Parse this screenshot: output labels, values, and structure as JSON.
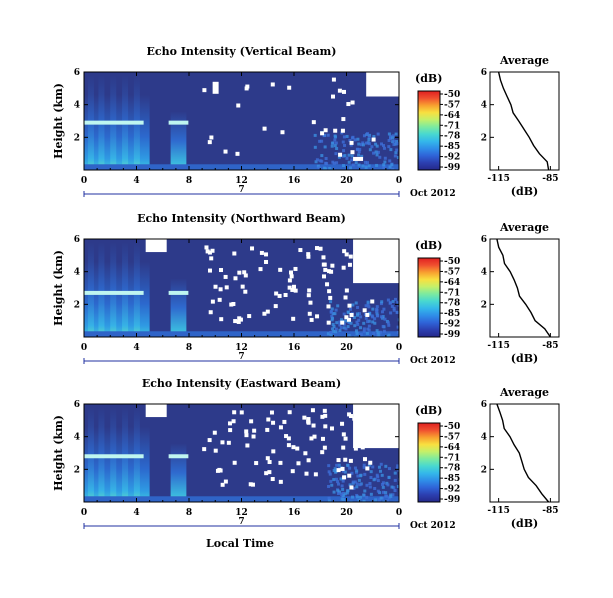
{
  "figure": {
    "x_label": "Local Time",
    "date_label": "Oct 2012",
    "day_label": "7",
    "y_label": "Height (km)",
    "unit_label": "(dB)",
    "avg_title": "Average",
    "avg_x_label": "(dB)"
  },
  "colors": {
    "background_echo": "#2d3a8a",
    "missing": "#ffffff",
    "colorbar": [
      "#24288a",
      "#2c3fb0",
      "#2f64d8",
      "#2f8ee8",
      "#34b8ea",
      "#48d8d0",
      "#7ceaa0",
      "#c4f06a",
      "#f8e040",
      "#f8a030",
      "#f05030",
      "#e02020"
    ]
  },
  "chart_data": [
    {
      "type": "heatmap",
      "title": "Echo Intensity (Vertical Beam)",
      "xlabel": "",
      "ylabel": "Height (km)",
      "x_ticks": [
        "0",
        "4",
        "8",
        "12",
        "16",
        "20",
        "0"
      ],
      "y_ticks": [
        "2",
        "4",
        "6"
      ],
      "xlim": [
        0,
        24
      ],
      "ylim": [
        0,
        6
      ],
      "colorbar": {
        "label": "(dB)",
        "ticks": [
          "-50",
          "-57",
          "-64",
          "-71",
          "-78",
          "-85",
          "-92",
          "-99"
        ],
        "range": [
          -99,
          -50
        ]
      },
      "features": {
        "bright_layer_km": 2.9,
        "active_convection_hours": [
          0,
          5
        ],
        "secondary_cell_hours": [
          6.6,
          7.8
        ],
        "low_echo_hours": [
          17.5,
          24
        ]
      },
      "average_profile": {
        "title": "Average",
        "xlabel": "(dB)",
        "x_ticks": [
          "-115",
          "-85"
        ],
        "y_ticks": [
          "2",
          "4",
          "6"
        ],
        "xlim": [
          -120,
          -80
        ],
        "ylim": [
          0,
          6
        ],
        "height_km": [
          0,
          0.5,
          1,
          1.5,
          2,
          2.5,
          3,
          3.5,
          4,
          4.5,
          5,
          5.5,
          6
        ],
        "values_db": [
          -86,
          -87,
          -92,
          -95,
          -98,
          -101,
          -104,
          -106,
          -108,
          -110,
          -112,
          -114,
          -115
        ]
      }
    },
    {
      "type": "heatmap",
      "title": "Echo Intensity (Northward Beam)",
      "xlabel": "",
      "ylabel": "Height (km)",
      "x_ticks": [
        "0",
        "4",
        "8",
        "12",
        "16",
        "20",
        "0"
      ],
      "y_ticks": [
        "2",
        "4",
        "6"
      ],
      "xlim": [
        0,
        24
      ],
      "ylim": [
        0,
        6
      ],
      "colorbar": {
        "label": "(dB)",
        "ticks": [
          "-50",
          "-57",
          "-64",
          "-71",
          "-78",
          "-85",
          "-92",
          "-99"
        ],
        "range": [
          -99,
          -50
        ]
      },
      "features": {
        "bright_layer_km": 2.7,
        "active_convection_hours": [
          0,
          5
        ],
        "secondary_cell_hours": [
          6.6,
          7.8
        ],
        "low_echo_hours": [
          18.5,
          24
        ]
      },
      "average_profile": {
        "title": "Average",
        "xlabel": "(dB)",
        "x_ticks": [
          "-115",
          "-85"
        ],
        "y_ticks": [
          "2",
          "4",
          "6"
        ],
        "xlim": [
          -120,
          -80
        ],
        "ylim": [
          0,
          6
        ],
        "height_km": [
          0,
          0.5,
          1,
          1.5,
          2,
          2.5,
          3,
          3.5,
          4,
          4.5,
          5,
          5.5,
          6
        ],
        "values_db": [
          -85,
          -88,
          -93,
          -97,
          -100,
          -103,
          -105,
          -107,
          -109,
          -111,
          -113,
          -115,
          -116
        ]
      }
    },
    {
      "type": "heatmap",
      "title": "Echo Intensity (Eastward Beam)",
      "xlabel": "Local Time",
      "ylabel": "Height (km)",
      "x_ticks": [
        "0",
        "4",
        "8",
        "12",
        "16",
        "20",
        "0"
      ],
      "y_ticks": [
        "2",
        "4",
        "6"
      ],
      "xlim": [
        0,
        24
      ],
      "ylim": [
        0,
        6
      ],
      "colorbar": {
        "label": "(dB)",
        "ticks": [
          "-50",
          "-57",
          "-64",
          "-71",
          "-78",
          "-85",
          "-92",
          "-99"
        ],
        "range": [
          -99,
          -50
        ]
      },
      "features": {
        "bright_layer_km": 2.8,
        "active_convection_hours": [
          0,
          5
        ],
        "secondary_cell_hours": [
          6.6,
          7.8
        ],
        "low_echo_hours": [
          18.5,
          24
        ]
      },
      "average_profile": {
        "title": "Average",
        "xlabel": "(dB)",
        "x_ticks": [
          "-115",
          "-85"
        ],
        "y_ticks": [
          "2",
          "4",
          "6"
        ],
        "xlim": [
          -120,
          -80
        ],
        "ylim": [
          0,
          6
        ],
        "height_km": [
          0,
          0.5,
          1,
          1.5,
          2,
          2.5,
          3,
          3.5,
          4,
          4.5,
          5,
          5.5,
          6
        ],
        "values_db": [
          -86,
          -89,
          -94,
          -97,
          -100,
          -102,
          -104,
          -107,
          -109,
          -111,
          -113,
          -115,
          -116
        ]
      }
    }
  ]
}
